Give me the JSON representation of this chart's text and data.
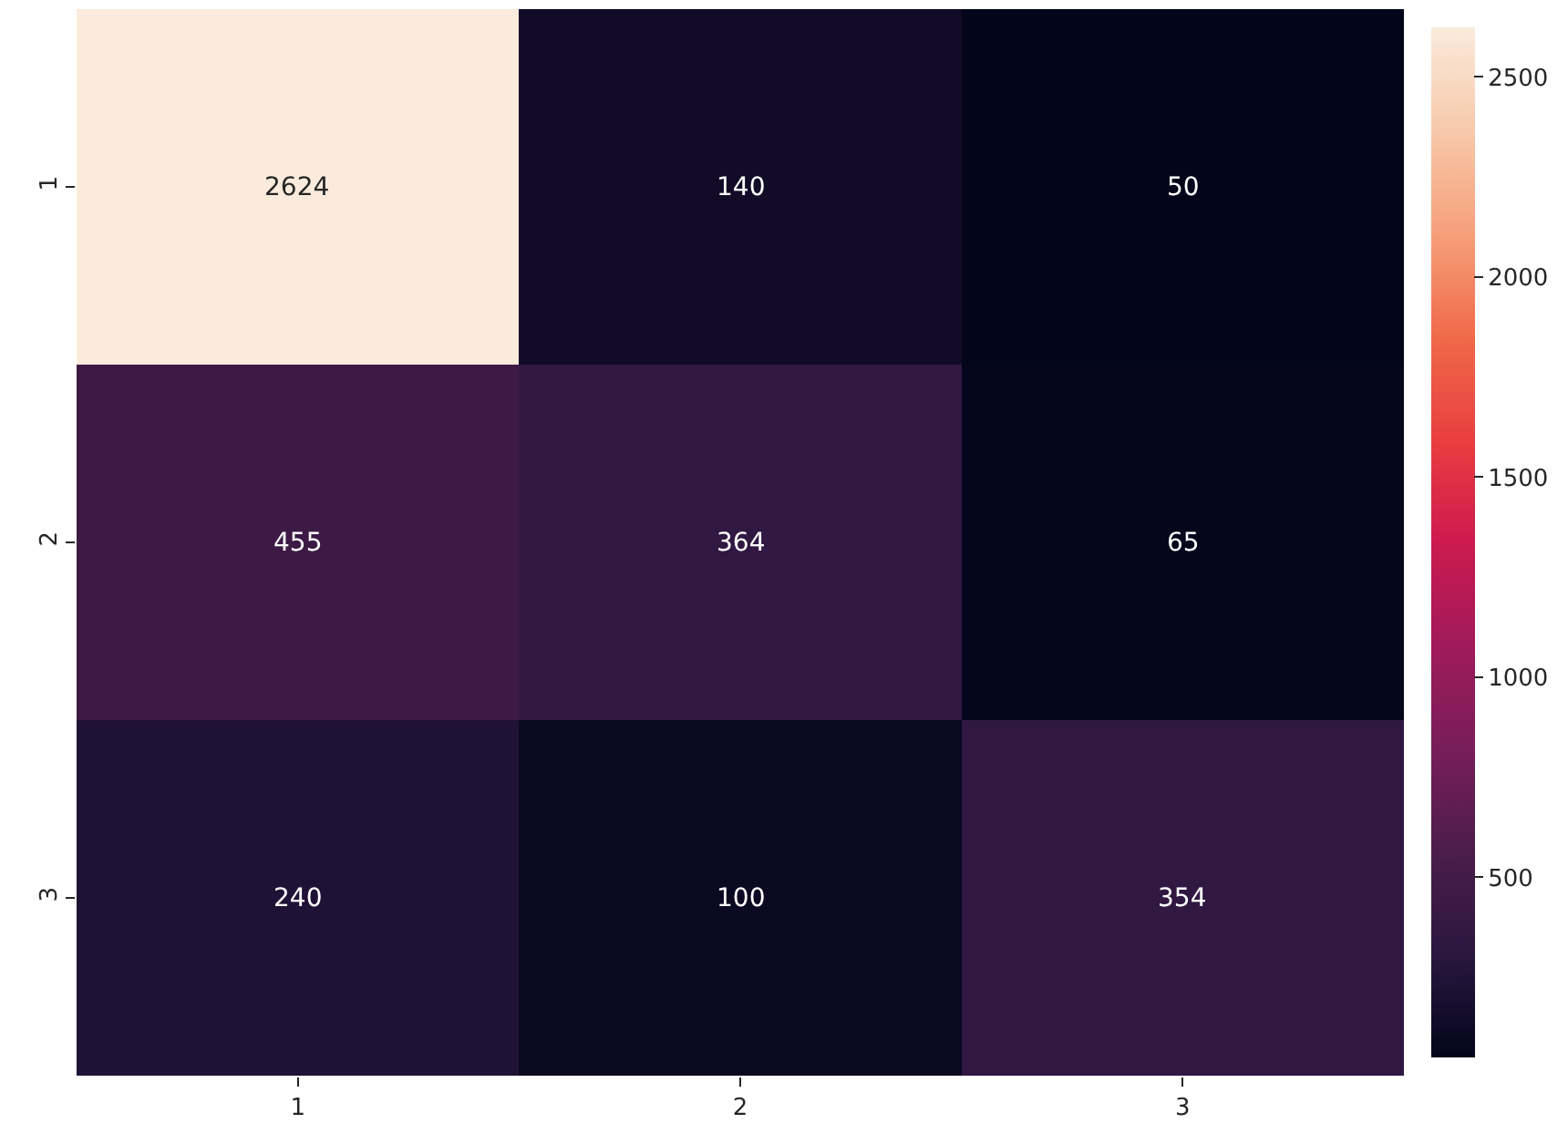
{
  "chart_data": {
    "type": "heatmap",
    "categories": [
      "1",
      "2",
      "3"
    ],
    "y_categories": [
      "1",
      "2",
      "3"
    ],
    "cells": [
      [
        2624,
        140,
        50
      ],
      [
        455,
        364,
        65
      ],
      [
        240,
        100,
        354
      ]
    ],
    "data_labels": true,
    "clim": [
      50,
      2624
    ],
    "cticks": [
      500,
      1000,
      1500,
      2000,
      2500
    ]
  }
}
